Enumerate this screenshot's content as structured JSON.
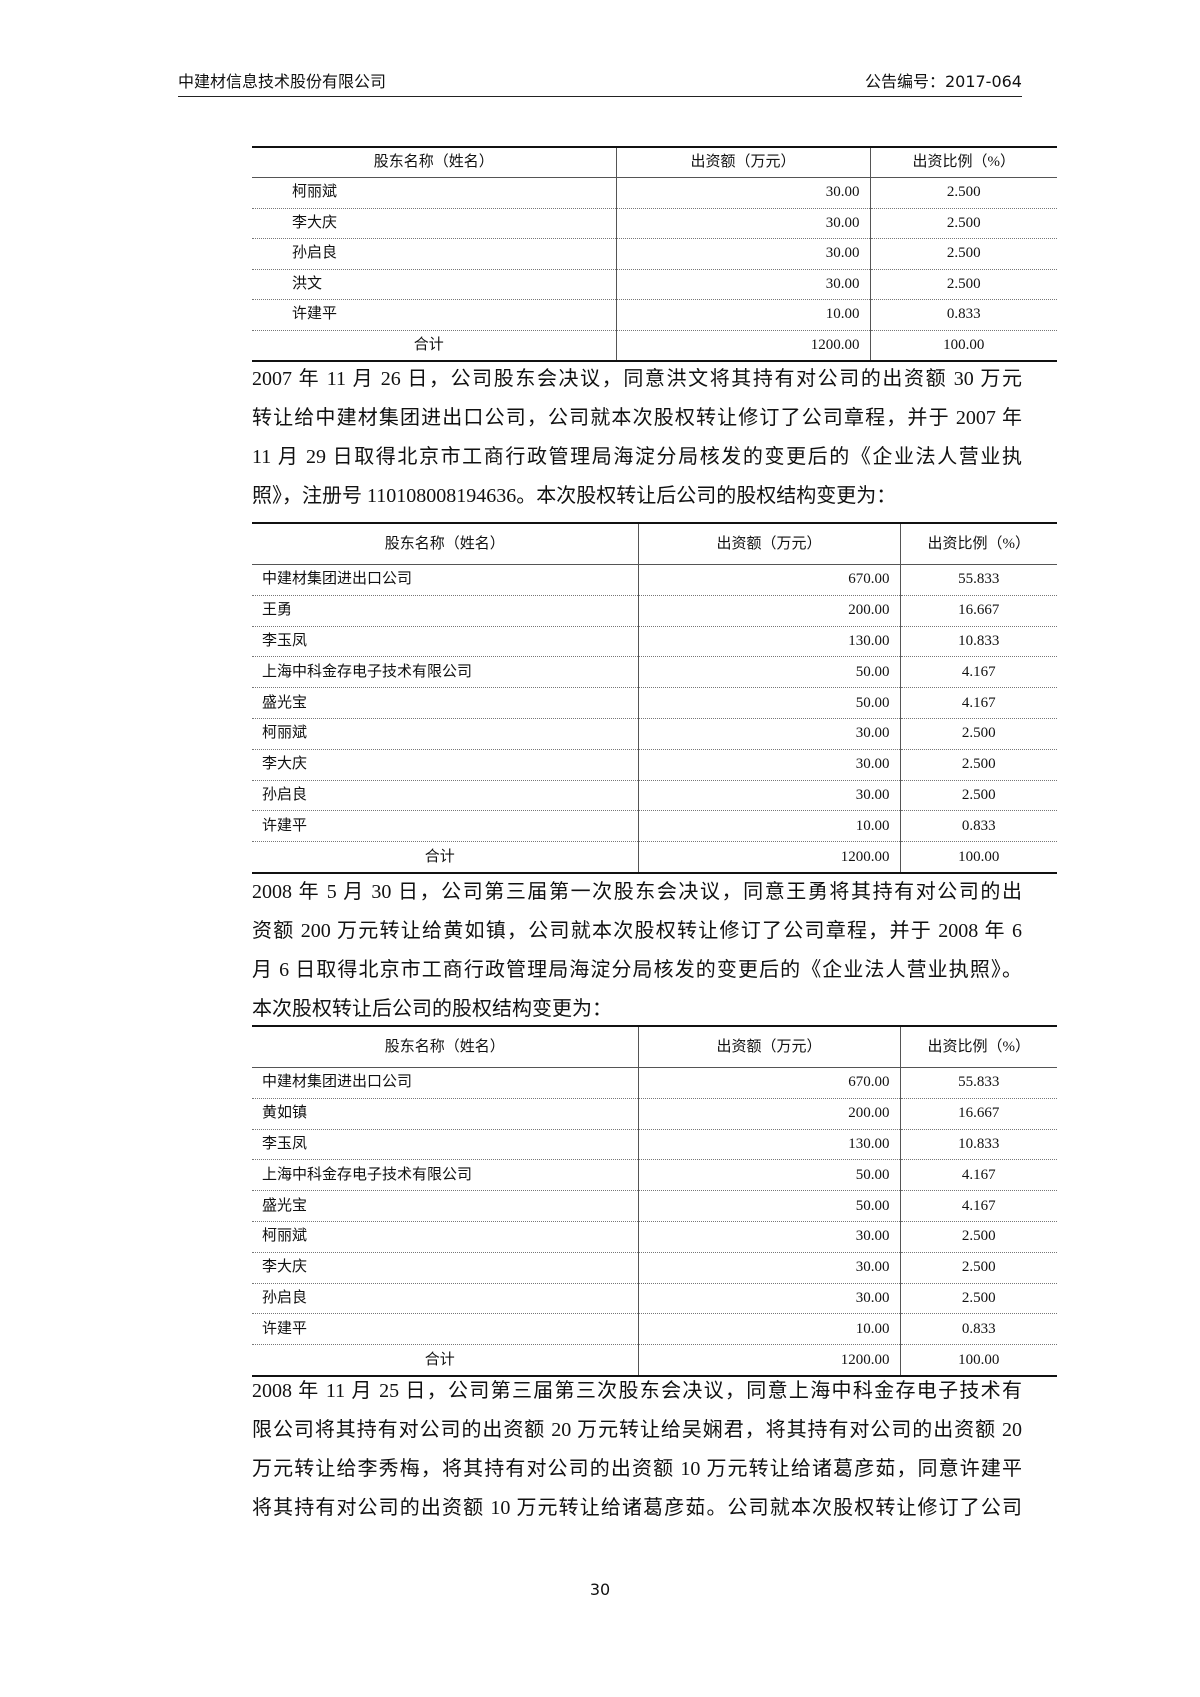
{
  "header": {
    "company": "中建材信息技术股份有限公司",
    "notice_no": "公告编号：2017-064"
  },
  "tables": [
    {
      "columns": [
        "股东名称（姓名）",
        "出资额（万元）",
        "出资比例（%）"
      ],
      "rows": [
        [
          "柯丽斌",
          "30.00",
          "2.500"
        ],
        [
          "李大庆",
          "30.00",
          "2.500"
        ],
        [
          "孙启良",
          "30.00",
          "2.500"
        ],
        [
          "洪文",
          "30.00",
          "2.500"
        ],
        [
          "许建平",
          "10.00",
          "0.833"
        ],
        [
          "合计",
          "1200.00",
          "100.00"
        ]
      ]
    },
    {
      "columns": [
        "股东名称（姓名）",
        "出资额（万元）",
        "出资比例（%）"
      ],
      "rows": [
        [
          "中建材集团进出口公司",
          "670.00",
          "55.833"
        ],
        [
          "王勇",
          "200.00",
          "16.667"
        ],
        [
          "李玉凤",
          "130.00",
          "10.833"
        ],
        [
          "上海中科金存电子技术有限公司",
          "50.00",
          "4.167"
        ],
        [
          "盛光宝",
          "50.00",
          "4.167"
        ],
        [
          "柯丽斌",
          "30.00",
          "2.500"
        ],
        [
          "李大庆",
          "30.00",
          "2.500"
        ],
        [
          "孙启良",
          "30.00",
          "2.500"
        ],
        [
          "许建平",
          "10.00",
          "0.833"
        ],
        [
          "合计",
          "1200.00",
          "100.00"
        ]
      ]
    },
    {
      "columns": [
        "股东名称（姓名）",
        "出资额（万元）",
        "出资比例（%）"
      ],
      "rows": [
        [
          "中建材集团进出口公司",
          "670.00",
          "55.833"
        ],
        [
          "黄如镇",
          "200.00",
          "16.667"
        ],
        [
          "李玉凤",
          "130.00",
          "10.833"
        ],
        [
          "上海中科金存电子技术有限公司",
          "50.00",
          "4.167"
        ],
        [
          "盛光宝",
          "50.00",
          "4.167"
        ],
        [
          "柯丽斌",
          "30.00",
          "2.500"
        ],
        [
          "李大庆",
          "30.00",
          "2.500"
        ],
        [
          "孙启良",
          "30.00",
          "2.500"
        ],
        [
          "许建平",
          "10.00",
          "0.833"
        ],
        [
          "合计",
          "1200.00",
          "100.00"
        ]
      ]
    }
  ],
  "paragraphs": [
    [
      "2007 年 11 月 26 日，公司股东会决议，同意洪文将其持有对公司的出资额 30 万元",
      "转让给中建材集团进出口公司，公司就本次股权转让修订了公司章程，并于 2007 年",
      "11 月 29 日取得北京市工商行政管理局海淀分局核发的变更后的《企业法人营业执",
      "照》，注册号 110108008194636。本次股权转让后公司的股权结构变更为："
    ],
    [
      "2008 年 5 月 30 日，公司第三届第一次股东会决议，同意王勇将其持有对公司的出",
      "资额 200 万元转让给黄如镇，公司就本次股权转让修订了公司章程，并于 2008 年 6",
      "月 6 日取得北京市工商行政管理局海淀分局核发的变更后的《企业法人营业执照》。",
      "本次股权转让后公司的股权结构变更为："
    ],
    [
      "2008 年 11 月 25 日，公司第三届第三次股东会决议，同意上海中科金存电子技术有",
      "限公司将其持有对公司的出资额 20 万元转让给吴娴君，将其持有对公司的出资额 20",
      "万元转让给李秀梅，将其持有对公司的出资额 10 万元转让给诸葛彦茹，同意许建平",
      "将其持有对公司的出资额 10 万元转让给诸葛彦茹。公司就本次股权转让修订了公司"
    ]
  ],
  "page_number": "30"
}
